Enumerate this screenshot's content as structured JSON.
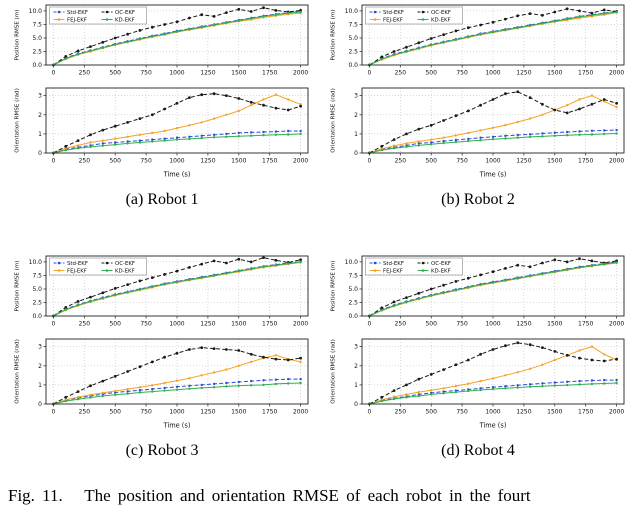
{
  "caption": "Fig. 11.   The position and orientation RMSE of each robot in the fourt",
  "subcaptions": [
    "(a) Robot 1",
    "(b) Robot 2",
    "(c) Robot 3",
    "(d) Robot 4"
  ],
  "chart_data": {
    "type": "line",
    "xlabel": "Time (s)",
    "x": [
      0,
      100,
      200,
      300,
      400,
      500,
      600,
      700,
      800,
      900,
      1000,
      1100,
      1200,
      1300,
      1400,
      1500,
      1600,
      1700,
      1800,
      1900,
      2000
    ],
    "xticks": [
      0,
      250,
      500,
      750,
      1000,
      1250,
      1500,
      1750,
      2000
    ],
    "xlim": [
      -60,
      2060
    ],
    "grid": true,
    "legend_position": "upper-left",
    "series_names": [
      "Std-EKF",
      "FEJ-EKF",
      "OC-EKF",
      "KD-EKF"
    ],
    "legend_order": [
      [
        "Std-EKF",
        "OC-EKF"
      ],
      [
        "FEJ-EKF",
        "KD-EKF"
      ]
    ],
    "series_colors": {
      "Std-EKF": "#2a4bd7",
      "FEJ-EKF": "#f7a325",
      "OC-EKF": "#1a1a1a",
      "KD-EKF": "#30b050"
    },
    "series_styles": {
      "Std-EKF": "dashed",
      "FEJ-EKF": "solid",
      "OC-EKF": "dashed",
      "KD-EKF": "solid"
    },
    "position_axis": {
      "ylabel": "Position RMSE (m)",
      "ylim": [
        0,
        11.1
      ],
      "yticks": [
        0,
        2.5,
        5,
        7.5,
        10
      ],
      "ytick_labels": [
        "0.0",
        "2.5",
        "5.0",
        "7.5",
        "10.0"
      ]
    },
    "orientation_axis": {
      "ylabel": "Orientation RMSE (rad)",
      "ylim": [
        0,
        3.4
      ],
      "yticks": [
        0,
        1,
        2,
        3
      ],
      "ytick_labels": [
        "0",
        "1",
        "2",
        "3"
      ]
    },
    "robots": [
      {
        "name": "Robot 1",
        "position": {
          "Std-EKF": [
            0,
            1.3,
            2.1,
            2.7,
            3.3,
            3.9,
            4.4,
            4.9,
            5.4,
            5.8,
            6.3,
            6.7,
            7.1,
            7.5,
            7.9,
            8.3,
            8.7,
            9.1,
            9.4,
            9.7,
            9.9
          ],
          "FEJ-EKF": [
            0,
            1.1,
            1.9,
            2.5,
            3.1,
            3.7,
            4.2,
            4.7,
            5.2,
            5.6,
            6.1,
            6.5,
            6.9,
            7.3,
            7.7,
            8.1,
            8.4,
            8.8,
            9.1,
            9.4,
            9.6
          ],
          "OC-EKF": [
            0,
            1.6,
            2.6,
            3.4,
            4.2,
            5.0,
            5.7,
            6.4,
            7.0,
            7.5,
            8.0,
            8.7,
            9.3,
            9.0,
            9.7,
            10.3,
            9.9,
            10.6,
            10.1,
            9.8,
            10.1
          ],
          "KD-EKF": [
            0,
            1.2,
            2.0,
            2.6,
            3.2,
            3.8,
            4.3,
            4.8,
            5.3,
            5.7,
            6.2,
            6.6,
            7.0,
            7.4,
            7.8,
            8.2,
            8.6,
            9.0,
            9.3,
            9.6,
            9.8
          ]
        },
        "orientation": {
          "Std-EKF": [
            0,
            0.2,
            0.3,
            0.4,
            0.5,
            0.55,
            0.6,
            0.65,
            0.7,
            0.75,
            0.8,
            0.85,
            0.9,
            0.95,
            1.0,
            1.05,
            1.08,
            1.1,
            1.12,
            1.15,
            1.15
          ],
          "FEJ-EKF": [
            0,
            0.25,
            0.4,
            0.55,
            0.65,
            0.75,
            0.85,
            0.95,
            1.05,
            1.15,
            1.3,
            1.45,
            1.6,
            1.8,
            2.0,
            2.2,
            2.5,
            2.8,
            3.05,
            2.8,
            2.55
          ],
          "OC-EKF": [
            0,
            0.35,
            0.65,
            0.95,
            1.2,
            1.4,
            1.6,
            1.8,
            2.0,
            2.3,
            2.6,
            2.9,
            3.05,
            3.1,
            3.0,
            2.85,
            2.65,
            2.5,
            2.35,
            2.25,
            2.45
          ],
          "KD-EKF": [
            0,
            0.15,
            0.25,
            0.32,
            0.38,
            0.44,
            0.5,
            0.55,
            0.6,
            0.65,
            0.7,
            0.74,
            0.78,
            0.82,
            0.85,
            0.88,
            0.9,
            0.93,
            0.95,
            0.97,
            1.0
          ]
        }
      },
      {
        "name": "Robot 2",
        "position": {
          "Std-EKF": [
            0,
            1.2,
            2.0,
            2.6,
            3.2,
            3.8,
            4.3,
            4.8,
            5.3,
            5.8,
            6.2,
            6.6,
            7.0,
            7.4,
            7.8,
            8.2,
            8.6,
            9.0,
            9.3,
            9.6,
            9.9
          ],
          "FEJ-EKF": [
            0,
            1.0,
            1.8,
            2.4,
            3.0,
            3.6,
            4.1,
            4.6,
            5.1,
            5.6,
            6.0,
            6.4,
            6.8,
            7.2,
            7.6,
            8.0,
            8.3,
            8.7,
            9.0,
            9.3,
            9.7
          ],
          "OC-EKF": [
            0,
            1.5,
            2.5,
            3.3,
            4.1,
            4.9,
            5.6,
            6.3,
            6.9,
            7.4,
            7.9,
            8.5,
            9.1,
            9.5,
            9.2,
            9.8,
            10.4,
            10.0,
            9.6,
            10.2,
            9.9
          ],
          "KD-EKF": [
            0,
            1.1,
            1.9,
            2.5,
            3.1,
            3.7,
            4.2,
            4.7,
            5.2,
            5.7,
            6.1,
            6.5,
            6.9,
            7.3,
            7.7,
            8.1,
            8.5,
            8.9,
            9.2,
            9.5,
            9.8
          ]
        },
        "orientation": {
          "Std-EKF": [
            0,
            0.2,
            0.3,
            0.4,
            0.5,
            0.55,
            0.62,
            0.68,
            0.74,
            0.8,
            0.85,
            0.9,
            0.94,
            0.98,
            1.02,
            1.06,
            1.1,
            1.13,
            1.16,
            1.18,
            1.2
          ],
          "FEJ-EKF": [
            0,
            0.22,
            0.38,
            0.5,
            0.6,
            0.7,
            0.8,
            0.92,
            1.05,
            1.18,
            1.32,
            1.46,
            1.62,
            1.8,
            2.0,
            2.25,
            2.5,
            2.8,
            3.0,
            2.7,
            2.4
          ],
          "OC-EKF": [
            0,
            0.35,
            0.7,
            1.0,
            1.25,
            1.45,
            1.7,
            1.95,
            2.2,
            2.5,
            2.8,
            3.1,
            3.2,
            2.9,
            2.55,
            2.25,
            2.1,
            2.3,
            2.55,
            2.8,
            2.6
          ],
          "KD-EKF": [
            0,
            0.15,
            0.25,
            0.33,
            0.4,
            0.46,
            0.52,
            0.57,
            0.62,
            0.67,
            0.72,
            0.76,
            0.8,
            0.84,
            0.87,
            0.9,
            0.93,
            0.95,
            0.97,
            1.0,
            1.02
          ]
        }
      },
      {
        "name": "Robot 3",
        "position": {
          "Std-EKF": [
            0,
            1.3,
            2.1,
            2.8,
            3.4,
            4.0,
            4.5,
            5.0,
            5.5,
            6.0,
            6.4,
            6.8,
            7.2,
            7.6,
            8.0,
            8.4,
            8.8,
            9.2,
            9.5,
            9.8,
            10.0
          ],
          "FEJ-EKF": [
            0,
            1.1,
            1.9,
            2.6,
            3.2,
            3.8,
            4.3,
            4.8,
            5.3,
            5.8,
            6.2,
            6.6,
            7.0,
            7.4,
            7.8,
            8.2,
            8.6,
            9.0,
            9.3,
            9.6,
            9.9
          ],
          "OC-EKF": [
            0,
            1.6,
            2.7,
            3.5,
            4.3,
            5.1,
            5.8,
            6.5,
            7.1,
            7.7,
            8.3,
            9.0,
            9.6,
            10.2,
            9.8,
            10.5,
            10.0,
            10.8,
            10.3,
            9.9,
            10.4
          ],
          "KD-EKF": [
            0,
            1.2,
            2.0,
            2.7,
            3.3,
            3.9,
            4.4,
            4.9,
            5.4,
            5.9,
            6.3,
            6.7,
            7.1,
            7.5,
            7.9,
            8.3,
            8.7,
            9.1,
            9.4,
            9.7,
            10.0
          ]
        },
        "orientation": {
          "Std-EKF": [
            0,
            0.2,
            0.32,
            0.42,
            0.52,
            0.6,
            0.66,
            0.72,
            0.78,
            0.84,
            0.9,
            0.95,
            1.0,
            1.05,
            1.1,
            1.15,
            1.2,
            1.24,
            1.27,
            1.3,
            1.3
          ],
          "FEJ-EKF": [
            0,
            0.22,
            0.36,
            0.48,
            0.58,
            0.68,
            0.78,
            0.88,
            0.98,
            1.1,
            1.22,
            1.35,
            1.5,
            1.65,
            1.8,
            2.0,
            2.2,
            2.4,
            2.55,
            2.35,
            2.2
          ],
          "OC-EKF": [
            0,
            0.35,
            0.65,
            0.95,
            1.2,
            1.45,
            1.7,
            1.95,
            2.2,
            2.45,
            2.65,
            2.85,
            2.95,
            2.9,
            2.85,
            2.8,
            2.6,
            2.45,
            2.35,
            2.3,
            2.4
          ],
          "KD-EKF": [
            0,
            0.15,
            0.25,
            0.34,
            0.42,
            0.48,
            0.54,
            0.6,
            0.65,
            0.7,
            0.75,
            0.8,
            0.84,
            0.88,
            0.92,
            0.95,
            0.98,
            1.0,
            1.05,
            1.08,
            1.1
          ]
        }
      },
      {
        "name": "Robot 4",
        "position": {
          "Std-EKF": [
            0,
            1.2,
            2.0,
            2.7,
            3.3,
            3.9,
            4.4,
            4.9,
            5.4,
            5.9,
            6.3,
            6.7,
            7.1,
            7.5,
            7.9,
            8.3,
            8.7,
            9.1,
            9.4,
            9.7,
            10.0
          ],
          "FEJ-EKF": [
            0,
            1.0,
            1.8,
            2.5,
            3.1,
            3.7,
            4.2,
            4.7,
            5.2,
            5.7,
            6.1,
            6.5,
            6.9,
            7.3,
            7.7,
            8.1,
            8.5,
            8.9,
            9.2,
            9.5,
            9.8
          ],
          "OC-EKF": [
            0,
            1.5,
            2.6,
            3.4,
            4.2,
            5.0,
            5.7,
            6.4,
            7.0,
            7.6,
            8.2,
            8.8,
            9.4,
            9.1,
            9.8,
            10.4,
            10.0,
            10.6,
            10.2,
            9.8,
            10.2
          ],
          "KD-EKF": [
            0,
            1.1,
            1.9,
            2.6,
            3.2,
            3.8,
            4.3,
            4.8,
            5.3,
            5.8,
            6.2,
            6.6,
            7.0,
            7.4,
            7.8,
            8.2,
            8.6,
            9.0,
            9.3,
            9.6,
            9.9
          ]
        },
        "orientation": {
          "Std-EKF": [
            0,
            0.2,
            0.3,
            0.4,
            0.5,
            0.58,
            0.65,
            0.7,
            0.76,
            0.82,
            0.88,
            0.93,
            0.98,
            1.03,
            1.08,
            1.12,
            1.16,
            1.2,
            1.23,
            1.25,
            1.25
          ],
          "FEJ-EKF": [
            0,
            0.22,
            0.38,
            0.5,
            0.62,
            0.72,
            0.82,
            0.94,
            1.06,
            1.2,
            1.34,
            1.5,
            1.66,
            1.84,
            2.05,
            2.3,
            2.55,
            2.8,
            3.0,
            2.6,
            2.3
          ],
          "OC-EKF": [
            0,
            0.35,
            0.7,
            1.0,
            1.3,
            1.55,
            1.8,
            2.05,
            2.3,
            2.6,
            2.85,
            3.05,
            3.2,
            3.1,
            2.95,
            2.75,
            2.55,
            2.4,
            2.3,
            2.25,
            2.35
          ],
          "KD-EKF": [
            0,
            0.15,
            0.26,
            0.35,
            0.42,
            0.5,
            0.56,
            0.62,
            0.68,
            0.73,
            0.78,
            0.82,
            0.86,
            0.9,
            0.93,
            0.96,
            0.99,
            1.02,
            1.05,
            1.07,
            1.1
          ]
        }
      }
    ]
  }
}
